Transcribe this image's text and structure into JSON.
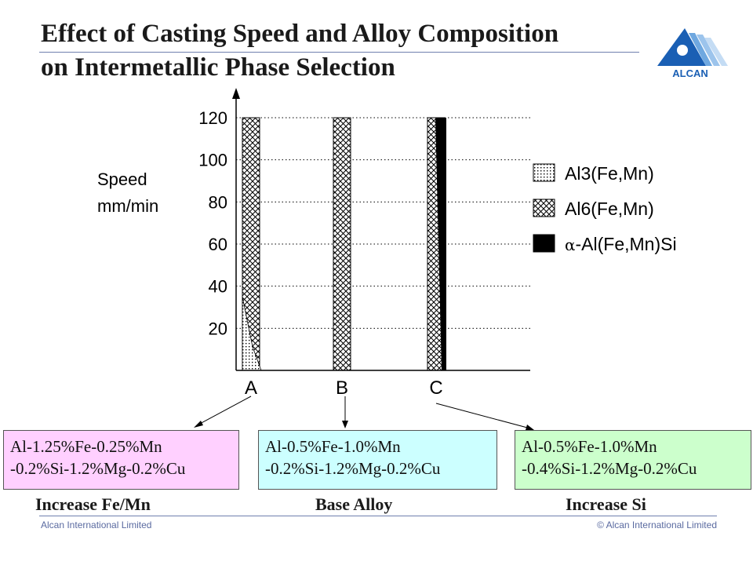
{
  "title_line1": "Effect of Casting Speed and Alloy Composition",
  "title_line2": "on Intermetallic Phase Selection",
  "logo_text": "ALCAN",
  "chart_data": {
    "type": "bar",
    "ylabel_line1": "Speed",
    "ylabel_line2": "mm/min",
    "yticks": [
      20,
      40,
      60,
      80,
      100,
      120
    ],
    "ylim": [
      0,
      130
    ],
    "categories": [
      "A",
      "B",
      "C"
    ],
    "grid": "dotted horizontal",
    "legend_position": "right",
    "legend": [
      {
        "prefix": "",
        "label": "Al3(Fe,Mn)",
        "pattern": "dots"
      },
      {
        "prefix": "",
        "label": "Al6(Fe,Mn)",
        "pattern": "cross"
      },
      {
        "prefix": "α",
        "label": "-Al(Fe,Mn)Si",
        "pattern": "solid"
      }
    ],
    "bars": [
      {
        "category": "A",
        "phases": [
          {
            "phase": "Al3(Fe,Mn)",
            "from": 0,
            "to": 35
          },
          {
            "phase": "Al6(Fe,Mn)",
            "from": 0,
            "to": 120
          }
        ]
      },
      {
        "category": "B",
        "phases": [
          {
            "phase": "Al6(Fe,Mn)",
            "from": 0,
            "to": 120
          }
        ]
      },
      {
        "category": "C",
        "phases": [
          {
            "phase": "Al6(Fe,Mn)",
            "from": 0,
            "to": 120
          },
          {
            "phase": "α-Al(Fe,Mn)Si",
            "from": 0,
            "to": 120
          }
        ]
      }
    ]
  },
  "alloys": [
    {
      "line1": "Al-1.25%Fe-0.25%Mn",
      "line2": "-0.2%Si-1.2%Mg-0.2%Cu",
      "caption": "Increase Fe/Mn",
      "color": "#ffd0ff"
    },
    {
      "line1": "Al-0.5%Fe-1.0%Mn",
      "line2": "-0.2%Si-1.2%Mg-0.2%Cu",
      "caption": "Base Alloy",
      "color": "#ccffff"
    },
    {
      "line1": "Al-0.5%Fe-1.0%Mn",
      "line2": "-0.4%Si-1.2%Mg-0.2%Cu",
      "caption": "Increase Si",
      "color": "#ccffcc"
    }
  ],
  "footer_left": "Alcan International Limited",
  "footer_right": "© Alcan International Limited"
}
